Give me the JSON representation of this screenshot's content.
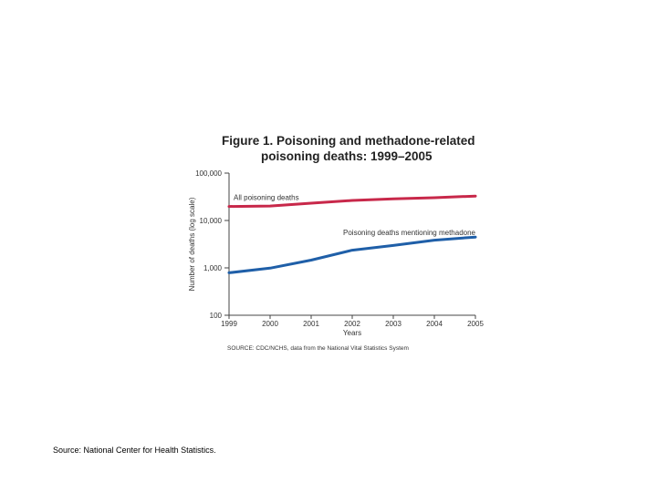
{
  "chart_data": {
    "type": "line",
    "title": {
      "line1": "Figure 1. Poisoning and methadone-related",
      "line2": "poisoning deaths: 1999–2005"
    },
    "xlabel": "Years",
    "ylabel": "Number of deaths (log scale)",
    "y_scale": "log",
    "ylim": [
      100,
      100000
    ],
    "y_ticks": [
      {
        "value": 100,
        "label": "100"
      },
      {
        "value": 1000,
        "label": "1,000"
      },
      {
        "value": 10000,
        "label": "10,000"
      },
      {
        "value": 100000,
        "label": "100,000"
      }
    ],
    "categories": [
      "1999",
      "2000",
      "2001",
      "2002",
      "2003",
      "2004",
      "2005"
    ],
    "series": [
      {
        "name": "All poisoning deaths",
        "color": "#c8284a",
        "values": [
          19741,
          20223,
          23183,
          26435,
          28723,
          30307,
          32691
        ]
      },
      {
        "name": "Poisoning deaths mentioning methadone",
        "color": "#1f5fa8",
        "values": [
          786,
          988,
          1456,
          2360,
          2974,
          3849,
          4462
        ]
      }
    ],
    "source": "SOURCE: CDC/NCHS, data from the National Vital Statistics System"
  },
  "footer": {
    "source": "Source: National Center for Health Statistics."
  }
}
